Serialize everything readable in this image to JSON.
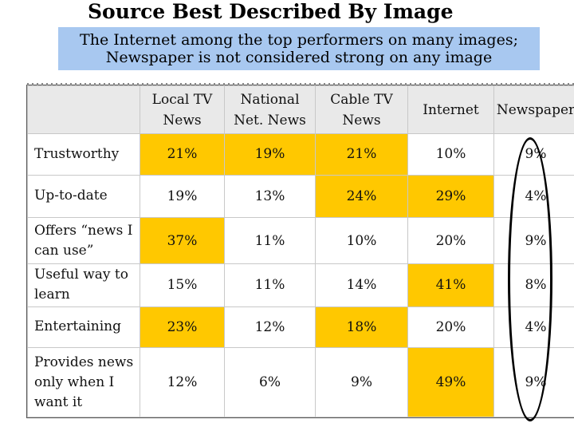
{
  "slide": {
    "title": "Source Best Described By Image",
    "subtitle_line1": "The Internet among the top performers on many images;",
    "subtitle_line2": "Newspaper is not considered strong on any image"
  },
  "table": {
    "headers": [
      {
        "line1": "Local TV",
        "line2": "News"
      },
      {
        "line1": "National",
        "line2": "Net. News"
      },
      {
        "line1": "Cable TV",
        "line2": "News"
      },
      {
        "line1": "Internet",
        "line2": ""
      },
      {
        "line1": "Newspaper",
        "line2": ""
      }
    ],
    "rows": [
      {
        "label": "Trustworthy",
        "values": [
          "21%",
          "19%",
          "21%",
          "10%",
          "9%"
        ],
        "highlight": [
          true,
          true,
          true,
          false,
          false
        ]
      },
      {
        "label": "Up-to-date",
        "values": [
          "19%",
          "13%",
          "24%",
          "29%",
          "4%"
        ],
        "highlight": [
          false,
          false,
          true,
          true,
          false
        ]
      },
      {
        "label": "Offers “news I can use”",
        "values": [
          "37%",
          "11%",
          "10%",
          "20%",
          "9%"
        ],
        "highlight": [
          true,
          false,
          false,
          false,
          false
        ]
      },
      {
        "label": "Useful way to learn",
        "values": [
          "15%",
          "11%",
          "14%",
          "41%",
          "8%"
        ],
        "highlight": [
          false,
          false,
          false,
          true,
          false
        ]
      },
      {
        "label": "Entertaining",
        "values": [
          "23%",
          "12%",
          "18%",
          "20%",
          "4%"
        ],
        "highlight": [
          true,
          false,
          true,
          false,
          false
        ]
      },
      {
        "label": "Provides news only when I want it",
        "values": [
          "12%",
          "6%",
          "9%",
          "49%",
          "9%"
        ],
        "highlight": [
          false,
          false,
          false,
          true,
          false
        ]
      }
    ]
  },
  "colors": {
    "highlight": "#ffc800",
    "subtitle_background": "#a8c8f0",
    "header_background": "#e9e9e9",
    "circle_stroke": "#000000"
  }
}
